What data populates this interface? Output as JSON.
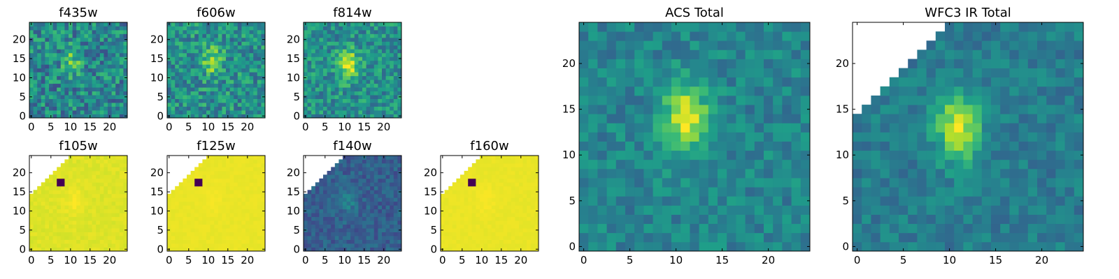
{
  "figure": {
    "background": "#ffffff",
    "colormap": "viridis"
  },
  "chart_data": [
    {
      "type": "heatmap",
      "title": "f435w",
      "xlim": [
        -0.5,
        24.5
      ],
      "ylim": [
        -0.5,
        24.5
      ],
      "xticks": [
        0,
        5,
        10,
        15,
        20
      ],
      "yticks": [
        0,
        5,
        10,
        15,
        20
      ],
      "grid": false,
      "masked": false,
      "level": 0.46,
      "noise": 0.22,
      "blob": 0.25,
      "blob_center": [
        10.5,
        14.5
      ],
      "seed": 11
    },
    {
      "type": "heatmap",
      "title": "f606w",
      "xlim": [
        -0.5,
        24.5
      ],
      "ylim": [
        -0.5,
        24.5
      ],
      "xticks": [
        0,
        5,
        10,
        15,
        20
      ],
      "yticks": [
        0,
        5,
        10,
        15,
        20
      ],
      "grid": false,
      "masked": false,
      "level": 0.5,
      "noise": 0.2,
      "blob": 0.35,
      "blob_center": [
        11,
        14.5
      ],
      "seed": 23
    },
    {
      "type": "heatmap",
      "title": "f814w",
      "xlim": [
        -0.5,
        24.5
      ],
      "ylim": [
        -0.5,
        24.5
      ],
      "xticks": [
        0,
        5,
        10,
        15,
        20
      ],
      "yticks": [
        0,
        5,
        10,
        15,
        20
      ],
      "grid": false,
      "masked": false,
      "level": 0.5,
      "noise": 0.18,
      "blob": 0.45,
      "blob_center": [
        11,
        13.5
      ],
      "seed": 37
    },
    {
      "type": "heatmap",
      "title": "f105w",
      "xlim": [
        -0.5,
        24.5
      ],
      "ylim": [
        -0.5,
        24.5
      ],
      "xticks": [
        0,
        5,
        10,
        15,
        20
      ],
      "yticks": [
        0,
        5,
        10,
        15,
        20
      ],
      "grid": false,
      "masked": true,
      "level": 0.95,
      "noise": 0.02,
      "blob": 0.04,
      "blob_center": [
        11,
        13
      ],
      "seed": 41
    },
    {
      "type": "heatmap",
      "title": "f125w",
      "xlim": [
        -0.5,
        24.5
      ],
      "ylim": [
        -0.5,
        24.5
      ],
      "xticks": [
        0,
        5,
        10,
        15,
        20
      ],
      "yticks": [
        0,
        5,
        10,
        15,
        20
      ],
      "grid": false,
      "masked": true,
      "level": 0.97,
      "noise": 0.01,
      "blob": 0.02,
      "blob_center": [
        11,
        13
      ],
      "seed": 43
    },
    {
      "type": "heatmap",
      "title": "f140w",
      "xlim": [
        -0.5,
        24.5
      ],
      "ylim": [
        -0.5,
        24.5
      ],
      "xticks": [
        0,
        5,
        10,
        15,
        20
      ],
      "yticks": [
        0,
        5,
        10,
        15,
        20
      ],
      "grid": false,
      "masked": true,
      "level": 0.3,
      "noise": 0.09,
      "blob": 0.14,
      "blob_center": [
        11,
        13
      ],
      "seed": 47
    },
    {
      "type": "heatmap",
      "title": "f160w",
      "xlim": [
        -0.5,
        24.5
      ],
      "ylim": [
        -0.5,
        24.5
      ],
      "xticks": [
        0,
        5,
        10,
        15,
        20
      ],
      "yticks": [
        0,
        5,
        10,
        15,
        20
      ],
      "grid": false,
      "masked": true,
      "level": 0.97,
      "noise": 0.01,
      "blob": 0.02,
      "blob_center": [
        11,
        13
      ],
      "seed": 53
    },
    {
      "type": "heatmap",
      "title": "ACS Total",
      "xlim": [
        -0.5,
        24.5
      ],
      "ylim": [
        -0.5,
        24.5
      ],
      "xticks": [
        0,
        5,
        10,
        15,
        20
      ],
      "yticks": [
        0,
        5,
        10,
        15,
        20
      ],
      "grid": false,
      "masked": false,
      "level": 0.45,
      "noise": 0.12,
      "blob": 0.5,
      "blob_center": [
        11,
        14
      ],
      "seed": 61
    },
    {
      "type": "heatmap",
      "title": "WFC3 IR Total",
      "xlim": [
        -0.5,
        24.5
      ],
      "ylim": [
        -0.5,
        24.5
      ],
      "xticks": [
        0,
        5,
        10,
        15,
        20
      ],
      "yticks": [
        0,
        5,
        10,
        15,
        20
      ],
      "grid": false,
      "masked": true,
      "level": 0.42,
      "noise": 0.1,
      "blob": 0.5,
      "blob_center": [
        11,
        13
      ],
      "seed": 71
    }
  ]
}
